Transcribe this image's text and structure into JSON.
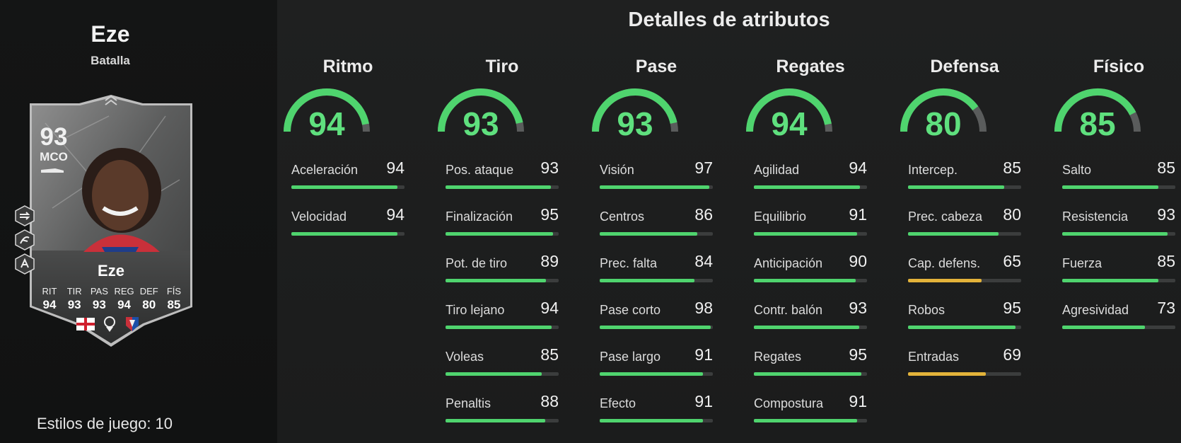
{
  "player": {
    "name": "Eze",
    "version": "Batalla",
    "playstyles_label": "Estilos de juego: 10"
  },
  "card": {
    "rating": "93",
    "position": "MCO",
    "name": "Eze",
    "stats": [
      {
        "label": "RIT",
        "value": "94"
      },
      {
        "label": "TIR",
        "value": "93"
      },
      {
        "label": "PAS",
        "value": "93"
      },
      {
        "label": "REG",
        "value": "94"
      },
      {
        "label": "DEF",
        "value": "80"
      },
      {
        "label": "FÍS",
        "value": "85"
      }
    ],
    "badges": [
      "england-flag-icon",
      "premier-league-icon",
      "crystal-palace-crest-icon"
    ],
    "playstyle_icons": [
      "playstyle-1-icon",
      "playstyle-2-icon",
      "playstyle-3-icon"
    ]
  },
  "details_title": "Detalles de atributos",
  "colors": {
    "gauge_green": "#4fd46e",
    "value_green": "#5fe07e",
    "bar_green": "#4fd46e",
    "bar_yellow": "#e3b33a",
    "track": "#3b3d3d"
  },
  "categories": [
    {
      "name": "Ritmo",
      "value": "94",
      "stats": [
        {
          "label": "Aceleración",
          "value": "94"
        },
        {
          "label": "Velocidad",
          "value": "94"
        }
      ]
    },
    {
      "name": "Tiro",
      "value": "93",
      "stats": [
        {
          "label": "Pos. ataque",
          "value": "93"
        },
        {
          "label": "Finalización",
          "value": "95"
        },
        {
          "label": "Pot. de tiro",
          "value": "89"
        },
        {
          "label": "Tiro lejano",
          "value": "94"
        },
        {
          "label": "Voleas",
          "value": "85"
        },
        {
          "label": "Penaltis",
          "value": "88"
        }
      ]
    },
    {
      "name": "Pase",
      "value": "93",
      "stats": [
        {
          "label": "Visión",
          "value": "97"
        },
        {
          "label": "Centros",
          "value": "86"
        },
        {
          "label": "Prec. falta",
          "value": "84"
        },
        {
          "label": "Pase corto",
          "value": "98"
        },
        {
          "label": "Pase largo",
          "value": "91"
        },
        {
          "label": "Efecto",
          "value": "91"
        }
      ]
    },
    {
      "name": "Regates",
      "value": "94",
      "stats": [
        {
          "label": "Agilidad",
          "value": "94"
        },
        {
          "label": "Equilibrio",
          "value": "91"
        },
        {
          "label": "Anticipación",
          "value": "90"
        },
        {
          "label": "Contr. balón",
          "value": "93"
        },
        {
          "label": "Regates",
          "value": "95"
        },
        {
          "label": "Compostura",
          "value": "91"
        }
      ]
    },
    {
      "name": "Defensa",
      "value": "80",
      "stats": [
        {
          "label": "Intercep.",
          "value": "85"
        },
        {
          "label": "Prec. cabeza",
          "value": "80"
        },
        {
          "label": "Cap. defens.",
          "value": "65"
        },
        {
          "label": "Robos",
          "value": "95"
        },
        {
          "label": "Entradas",
          "value": "69"
        }
      ]
    },
    {
      "name": "Físico",
      "value": "85",
      "stats": [
        {
          "label": "Salto",
          "value": "85"
        },
        {
          "label": "Resistencia",
          "value": "93"
        },
        {
          "label": "Fuerza",
          "value": "85"
        },
        {
          "label": "Agresividad",
          "value": "73"
        }
      ]
    }
  ]
}
